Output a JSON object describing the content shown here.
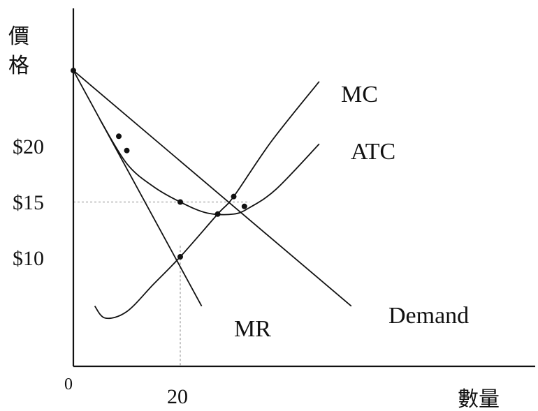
{
  "chart_data": {
    "type": "line",
    "ylabel_chars": [
      "價",
      "格"
    ],
    "xlabel": "數量",
    "origin_label": "0",
    "xlim": [
      0,
      90
    ],
    "ylim": [
      0,
      29
    ],
    "x_ticks": [
      {
        "value": 20,
        "label": "20"
      }
    ],
    "y_ticks": [
      {
        "value": 20,
        "label": "$20"
      },
      {
        "value": 15,
        "label": "$15"
      },
      {
        "value": 10,
        "label": "$10"
      }
    ],
    "series": [
      {
        "name": "Demand",
        "points": [
          [
            0,
            27
          ],
          [
            52,
            5.5
          ]
        ]
      },
      {
        "name": "MR",
        "points": [
          [
            0,
            27
          ],
          [
            24,
            5.5
          ]
        ]
      },
      {
        "name": "MC",
        "points": [
          [
            4,
            5.5
          ],
          [
            6,
            4.4
          ],
          [
            10,
            5
          ],
          [
            15,
            7.5
          ],
          [
            20,
            10
          ],
          [
            27,
            13.9
          ],
          [
            30,
            15.5
          ],
          [
            37,
            20.5
          ],
          [
            46,
            26
          ]
        ]
      },
      {
        "name": "ATC",
        "points": [
          [
            5,
            22.5
          ],
          [
            10,
            18.5
          ],
          [
            15,
            16.4
          ],
          [
            20,
            15
          ],
          [
            25,
            14
          ],
          [
            30,
            13.9
          ],
          [
            33,
            14.5
          ],
          [
            38,
            16.2
          ],
          [
            46,
            20.3
          ]
        ]
      }
    ],
    "intersections": [
      [
        0,
        27
      ],
      [
        8.5,
        21
      ],
      [
        10,
        19.7
      ],
      [
        20,
        10
      ],
      [
        27,
        13.9
      ],
      [
        30,
        15.5
      ],
      [
        32,
        14.6
      ],
      [
        20,
        15
      ]
    ],
    "guides": {
      "price": 15,
      "quantity": 20
    }
  }
}
